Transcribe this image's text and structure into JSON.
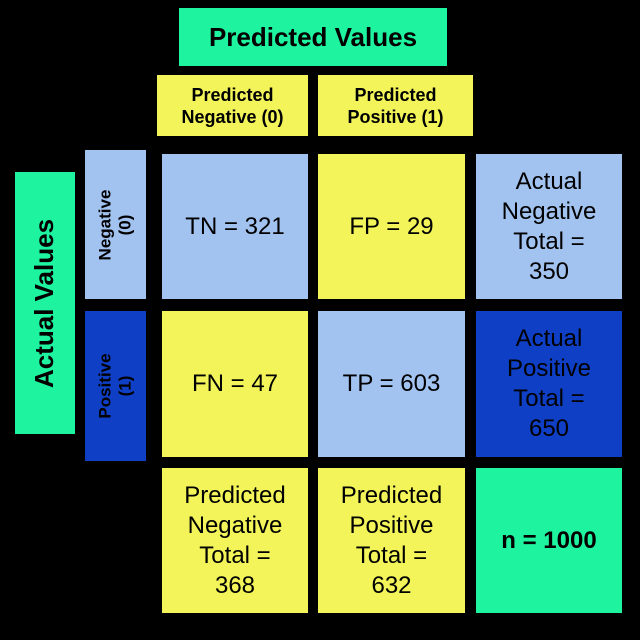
{
  "colors": {
    "green": "#1ef3a0",
    "yellow": "#f2f45a",
    "light_blue": "#a2c2f0",
    "dark_blue": "#0f3fc5",
    "background": "#000000"
  },
  "predicted": {
    "title": "Predicted Values",
    "negative_label": [
      "Predicted",
      "Negative (0)"
    ],
    "positive_label": [
      "Predicted",
      "Positive (1)"
    ]
  },
  "actual": {
    "title": "Actual Values",
    "negative_label": [
      "Negative",
      "(0)"
    ],
    "positive_label": [
      "Positive",
      "(1)"
    ]
  },
  "cells": {
    "tn": "TN = 321",
    "fp": "FP = 29",
    "fn": "FN = 47",
    "tp": "TP = 603"
  },
  "totals": {
    "actual_negative": [
      "Actual",
      "Negative",
      "Total =",
      "350"
    ],
    "actual_positive": [
      "Actual",
      "Positive",
      "Total =",
      "650"
    ],
    "predicted_negative": [
      "Predicted",
      "Negative",
      "Total =",
      "368"
    ],
    "predicted_positive": [
      "Predicted",
      "Positive",
      "Total =",
      "632"
    ],
    "n": "n = 1000"
  }
}
